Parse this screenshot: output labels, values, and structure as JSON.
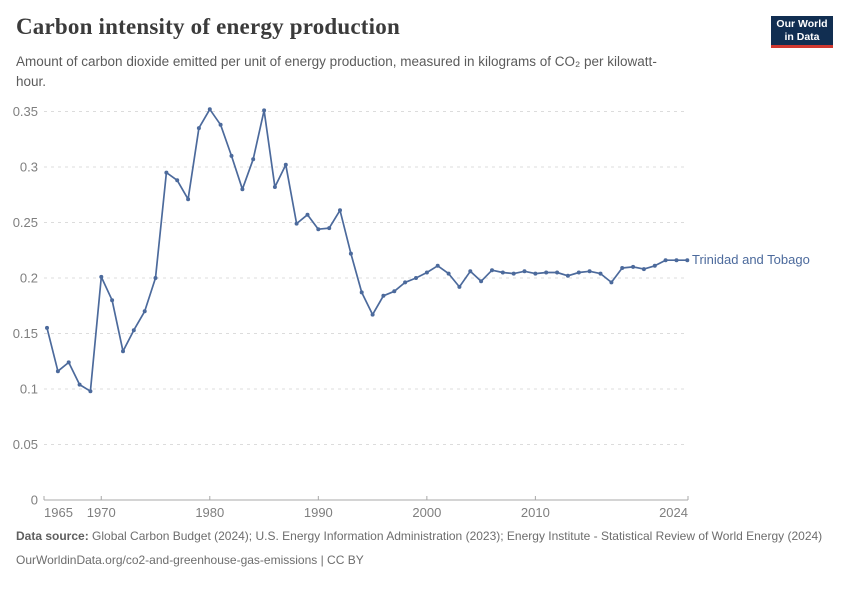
{
  "header": {
    "title": "Carbon intensity of energy production",
    "subtitle": "Amount of carbon dioxide emitted per unit of energy production, measured in kilograms of CO₂ per kilowatt-hour.",
    "logo": {
      "line1": "Our World",
      "line2": "in Data"
    }
  },
  "chart_data": {
    "type": "line",
    "title": "Carbon intensity of energy production",
    "xlabel": "",
    "ylabel": "kilograms of CO₂ per kilowatt-hour",
    "xlim": [
      1965,
      2024
    ],
    "ylim": [
      0,
      0.35
    ],
    "grid": "horizontal-dashed",
    "legend_position": "right-of-line-end",
    "x": [
      1965,
      1966,
      1967,
      1968,
      1969,
      1970,
      1971,
      1972,
      1973,
      1974,
      1975,
      1976,
      1977,
      1978,
      1979,
      1980,
      1981,
      1982,
      1983,
      1984,
      1985,
      1986,
      1987,
      1988,
      1989,
      1990,
      1991,
      1992,
      1993,
      1994,
      1995,
      1996,
      1997,
      1998,
      1999,
      2000,
      2001,
      2002,
      2003,
      2004,
      2005,
      2006,
      2007,
      2008,
      2009,
      2010,
      2011,
      2012,
      2013,
      2014,
      2015,
      2016,
      2017,
      2018,
      2019,
      2020,
      2021,
      2022,
      2023,
      2024
    ],
    "series": [
      {
        "name": "Trinidad and Tobago",
        "values": [
          0.155,
          0.116,
          0.124,
          0.104,
          0.098,
          0.201,
          0.18,
          0.134,
          0.153,
          0.17,
          0.2,
          0.295,
          0.288,
          0.271,
          0.335,
          0.352,
          0.338,
          0.31,
          0.28,
          0.307,
          0.351,
          0.282,
          0.302,
          0.249,
          0.257,
          0.244,
          0.245,
          0.261,
          0.222,
          0.187,
          0.167,
          0.184,
          0.188,
          0.196,
          0.2,
          0.205,
          0.211,
          0.204,
          0.192,
          0.206,
          0.197,
          0.207,
          0.205,
          0.204,
          0.206,
          0.204,
          0.205,
          0.205,
          0.202,
          0.205,
          0.206,
          0.204,
          0.196,
          0.209,
          0.21,
          0.208,
          0.211,
          0.216,
          0.216,
          0.216
        ]
      }
    ],
    "y_ticks": [
      {
        "v": 0,
        "label": "0"
      },
      {
        "v": 0.05,
        "label": "0.05"
      },
      {
        "v": 0.1,
        "label": "0.1"
      },
      {
        "v": 0.15,
        "label": "0.15"
      },
      {
        "v": 0.2,
        "label": "0.2"
      },
      {
        "v": 0.25,
        "label": "0.25"
      },
      {
        "v": 0.3,
        "label": "0.3"
      },
      {
        "v": 0.35,
        "label": "0.35"
      }
    ],
    "x_ticks": [
      {
        "v": 1965,
        "label": "1965"
      },
      {
        "v": 1970,
        "label": "1970"
      },
      {
        "v": 1980,
        "label": "1980"
      },
      {
        "v": 1990,
        "label": "1990"
      },
      {
        "v": 2000,
        "label": "2000"
      },
      {
        "v": 2010,
        "label": "2010"
      },
      {
        "v": 2024,
        "label": "2024"
      }
    ],
    "entity_label": "Trinidad and Tobago"
  },
  "colors": {
    "line": "#4c6a9c",
    "entity_label": "#4c6a9c",
    "gridline": "#dcdcdc",
    "axis": "#a8a8a8",
    "tick_label": "#7f7f7f",
    "logo_bg": "#112e51",
    "logo_stripe": "#d03830"
  },
  "footer": {
    "source_label": "Data source:",
    "source_text": " Global Carbon Budget (2024); U.S. Energy Information Administration (2023); Energy Institute - Statistical Review of World Energy (2024)",
    "url_line": "OurWorldinData.org/co2-and-greenhouse-gas-emissions | CC BY"
  }
}
